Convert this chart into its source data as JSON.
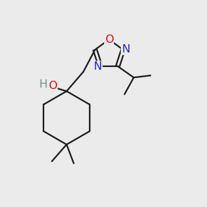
{
  "background_color": "#ebebeb",
  "bond_color": "#1a1a1a",
  "bond_width": 1.6,
  "atom_colors": {
    "O_ring": "#e00000",
    "O_oh": "#e00000",
    "N": "#2222cc",
    "H": "#5a9a8a"
  },
  "font_size_atom": 11.5
}
